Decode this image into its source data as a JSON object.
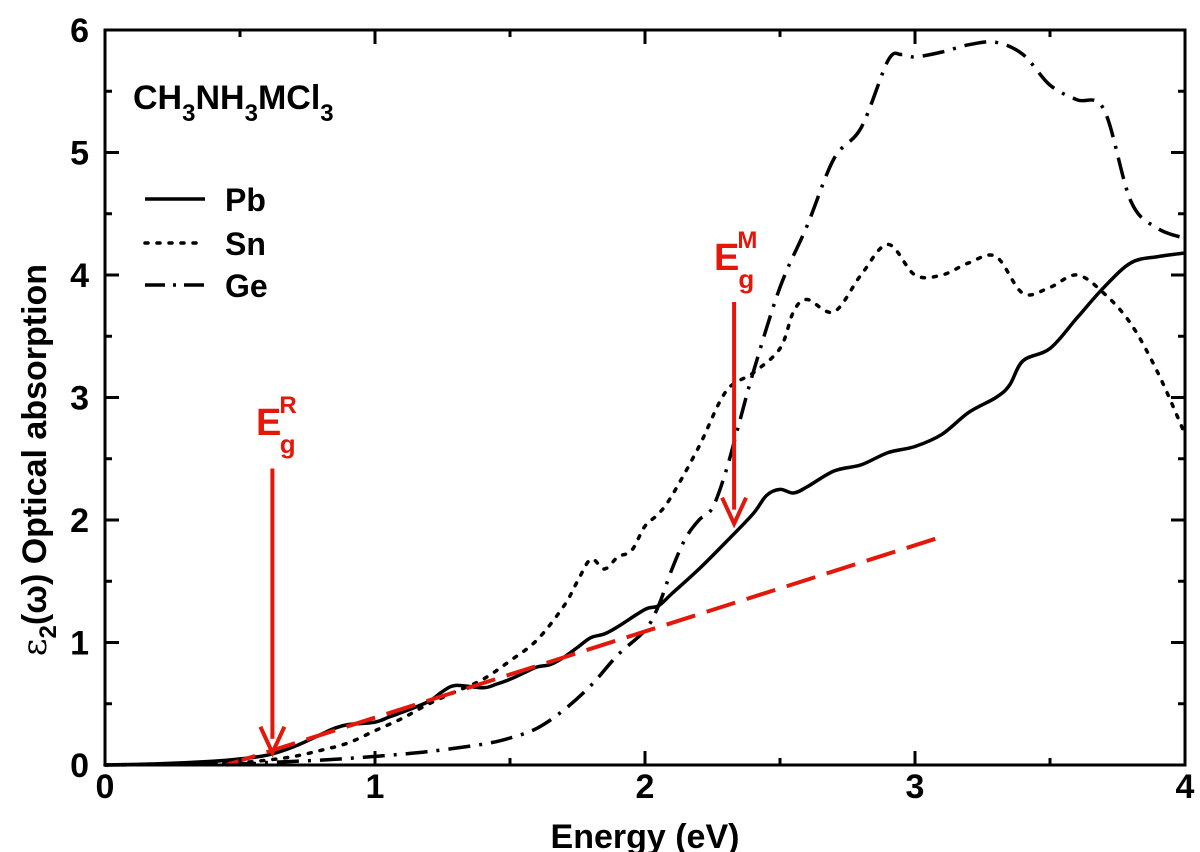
{
  "chart_data": {
    "type": "line",
    "title": "CH3NH3MCl3",
    "title_parts": {
      "p1": "CH",
      "s1": "3",
      "p2": "NH",
      "s2": "3",
      "p3": "MCl",
      "s3": "3"
    },
    "xlabel": "Energy (eV)",
    "ylabel": "ε2(ω) Optical absorption",
    "ylabel_parts": {
      "symbol": "ε",
      "sub": "2",
      "rest": "(ω) Optical absorption"
    },
    "xlim": [
      0,
      4
    ],
    "ylim": [
      0,
      6
    ],
    "xticks": [
      0,
      1,
      2,
      3,
      4
    ],
    "yticks": [
      0,
      1,
      2,
      3,
      4,
      5,
      6
    ],
    "xtick_labels": [
      "0",
      "1",
      "2",
      "3",
      "4"
    ],
    "ytick_labels": [
      "0",
      "1",
      "2",
      "3",
      "4",
      "5",
      "6"
    ],
    "grid": false,
    "legend_position": "top-left",
    "colors": {
      "series": "#000000",
      "annotation": "#e3170a"
    },
    "series": [
      {
        "name": "Pb",
        "style": "solid",
        "x": [
          0,
          0.2,
          0.4,
          0.5,
          0.6,
          0.7,
          0.8,
          0.85,
          0.9,
          1.0,
          1.05,
          1.1,
          1.2,
          1.25,
          1.3,
          1.4,
          1.45,
          1.5,
          1.55,
          1.6,
          1.65,
          1.7,
          1.75,
          1.8,
          1.85,
          1.9,
          2.0,
          2.05,
          2.1,
          2.2,
          2.3,
          2.4,
          2.45,
          2.5,
          2.55,
          2.6,
          2.7,
          2.8,
          2.9,
          3.0,
          3.1,
          3.2,
          3.3,
          3.35,
          3.4,
          3.5,
          3.6,
          3.7,
          3.8,
          3.9,
          4.0
        ],
        "y": [
          0,
          0.01,
          0.03,
          0.05,
          0.08,
          0.15,
          0.25,
          0.3,
          0.33,
          0.35,
          0.39,
          0.43,
          0.52,
          0.6,
          0.65,
          0.63,
          0.66,
          0.7,
          0.75,
          0.8,
          0.82,
          0.88,
          0.96,
          1.04,
          1.07,
          1.13,
          1.27,
          1.3,
          1.4,
          1.6,
          1.82,
          2.05,
          2.2,
          2.25,
          2.22,
          2.27,
          2.4,
          2.45,
          2.55,
          2.6,
          2.7,
          2.88,
          3.0,
          3.1,
          3.3,
          3.4,
          3.65,
          3.9,
          4.1,
          4.15,
          4.18
        ]
      },
      {
        "name": "Sn",
        "style": "dotted",
        "x": [
          0,
          0.3,
          0.5,
          0.6,
          0.7,
          0.8,
          0.9,
          1.0,
          1.1,
          1.2,
          1.3,
          1.4,
          1.5,
          1.6,
          1.7,
          1.75,
          1.8,
          1.85,
          1.9,
          1.95,
          2.0,
          2.05,
          2.1,
          2.2,
          2.3,
          2.4,
          2.5,
          2.55,
          2.6,
          2.7,
          2.8,
          2.9,
          3.0,
          3.1,
          3.2,
          3.3,
          3.4,
          3.5,
          3.6,
          3.7,
          3.8,
          3.9,
          4.0
        ],
        "y": [
          0,
          0.01,
          0.02,
          0.04,
          0.07,
          0.12,
          0.18,
          0.28,
          0.38,
          0.5,
          0.6,
          0.7,
          0.85,
          1.02,
          1.3,
          1.5,
          1.68,
          1.6,
          1.7,
          1.75,
          1.95,
          2.05,
          2.2,
          2.6,
          3.05,
          3.2,
          3.4,
          3.7,
          3.8,
          3.7,
          4.0,
          4.25,
          4.0,
          4.0,
          4.1,
          4.15,
          3.85,
          3.9,
          4.0,
          3.85,
          3.6,
          3.2,
          2.7
        ]
      },
      {
        "name": "Ge",
        "style": "dash-dot",
        "x": [
          0,
          0.5,
          0.6,
          0.8,
          1.0,
          1.2,
          1.4,
          1.5,
          1.6,
          1.7,
          1.8,
          1.9,
          2.0,
          2.05,
          2.1,
          2.15,
          2.2,
          2.25,
          2.3,
          2.35,
          2.4,
          2.5,
          2.6,
          2.7,
          2.8,
          2.9,
          2.95,
          3.0,
          3.1,
          3.2,
          3.3,
          3.4,
          3.5,
          3.6,
          3.7,
          3.8,
          3.9,
          4.0
        ],
        "y": [
          0,
          0.01,
          0.02,
          0.04,
          0.07,
          0.11,
          0.17,
          0.22,
          0.3,
          0.45,
          0.65,
          0.9,
          1.1,
          1.3,
          1.6,
          1.85,
          2.0,
          2.1,
          2.4,
          2.8,
          3.2,
          3.9,
          4.4,
          4.95,
          5.2,
          5.75,
          5.8,
          5.78,
          5.82,
          5.88,
          5.9,
          5.8,
          5.55,
          5.43,
          5.35,
          4.6,
          4.38,
          4.3
        ]
      }
    ],
    "fit_line": {
      "style": "dashed",
      "color": "#e3170a",
      "x": [
        0.45,
        3.08
      ],
      "y": [
        0,
        1.85
      ]
    },
    "annotations": [
      {
        "label": "E",
        "sup": "R",
        "sub": "g",
        "arrow_x": 0.62,
        "arrow_y_from": 2.42,
        "arrow_y_to": 0.1
      },
      {
        "label": "E",
        "sup": "M",
        "sub": "g",
        "arrow_x": 2.33,
        "arrow_y_from": 3.78,
        "arrow_y_to": 1.97
      }
    ]
  }
}
